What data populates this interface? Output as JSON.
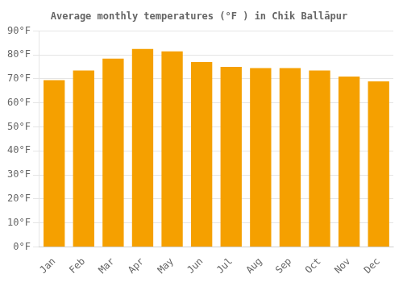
{
  "chart_data": {
    "type": "bar",
    "title": "Average monthly temperatures (°F ) in Chik Ballāpur",
    "categories": [
      "Jan",
      "Feb",
      "Mar",
      "Apr",
      "May",
      "Jun",
      "Jul",
      "Aug",
      "Sep",
      "Oct",
      "Nov",
      "Dec"
    ],
    "values": [
      69.5,
      73.5,
      78.5,
      82.5,
      81.5,
      77.0,
      75.0,
      74.5,
      74.5,
      73.5,
      71.0,
      69.0
    ],
    "color": "#F5A000",
    "ylim": [
      0,
      90
    ],
    "yticks": [
      {
        "value": 0,
        "label": "0°F"
      },
      {
        "value": 10,
        "label": "10°F"
      },
      {
        "value": 20,
        "label": "20°F"
      },
      {
        "value": 30,
        "label": "30°F"
      },
      {
        "value": 40,
        "label": "40°F"
      },
      {
        "value": 50,
        "label": "50°F"
      },
      {
        "value": 60,
        "label": "60°F"
      },
      {
        "value": 70,
        "label": "70°F"
      },
      {
        "value": 80,
        "label": "80°F"
      },
      {
        "value": 90,
        "label": "90°F"
      }
    ],
    "grid": true
  }
}
